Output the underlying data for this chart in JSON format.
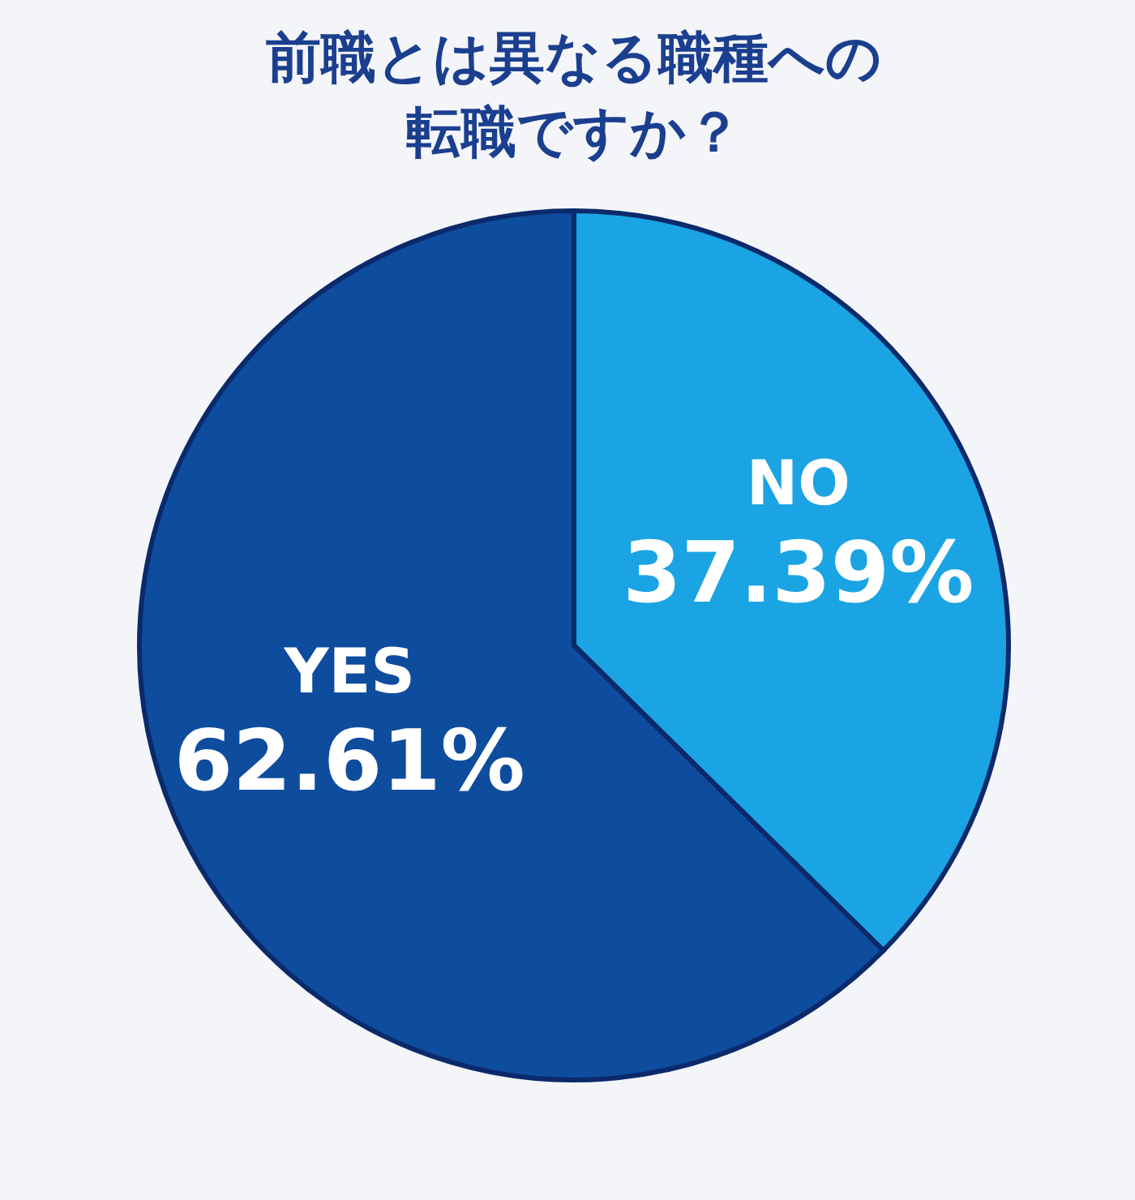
{
  "chart_data": {
    "type": "pie",
    "title": "前職とは異なる職種への転職ですか？",
    "categories": [
      "NO",
      "YES"
    ],
    "values": [
      37.39,
      62.61
    ],
    "value_labels": [
      "37.39%",
      "62.61%"
    ],
    "colors": [
      "#1ba4e3",
      "#0e4c9e"
    ],
    "legend": false
  }
}
